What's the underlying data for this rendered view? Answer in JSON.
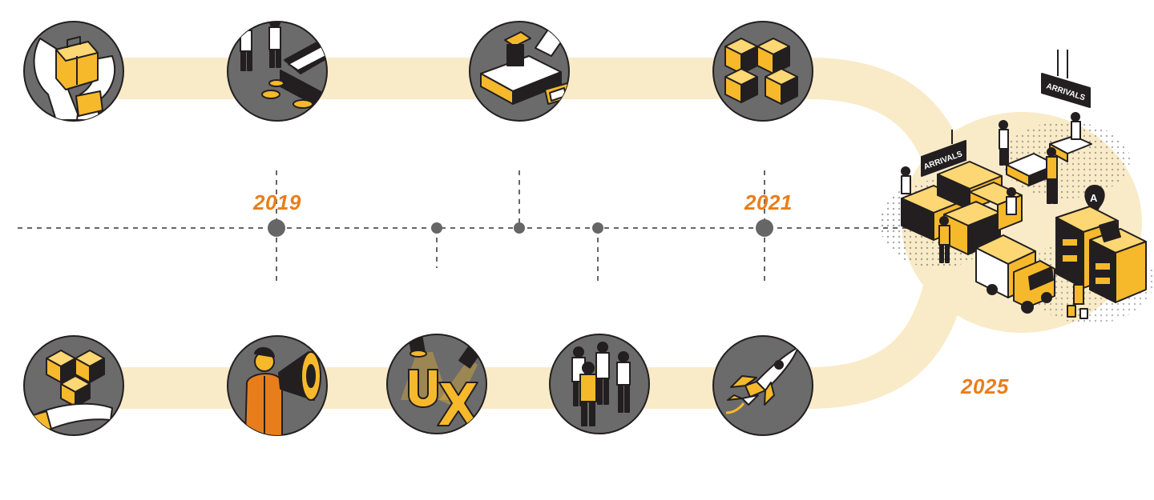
{
  "timeline": {
    "years": [
      {
        "label": "2019",
        "marker": "marker-2019"
      },
      {
        "label": "2021",
        "marker": "marker-2021"
      },
      {
        "label": "2025",
        "marker": "hub"
      }
    ],
    "colors": {
      "path": "#f9ebc8",
      "accent": "#e87e1b",
      "node": "#6b6b6b",
      "yellow": "#f6b92b",
      "dark": "#231f20",
      "dots": "#5e5e5e"
    }
  },
  "milestones_top": [
    {
      "icon": "hands-holding-suitcase-icon"
    },
    {
      "icon": "travelers-with-stickers-icon"
    },
    {
      "icon": "finger-pressing-terminal-button-icon"
    },
    {
      "icon": "stacked-cubes-icon"
    }
  ],
  "milestones_bottom": [
    {
      "icon": "hand-holding-cubes-icon"
    },
    {
      "icon": "staff-with-megaphone-icon"
    },
    {
      "icon": "ux-spotlight-icon"
    },
    {
      "icon": "team-group-icon"
    },
    {
      "icon": "rocket-icon"
    }
  ],
  "hub": {
    "icon": "airport-arrivals-hall-icon",
    "signs": [
      "ARRIVALS",
      "ARRIVALS"
    ],
    "gate_letter": "A"
  }
}
